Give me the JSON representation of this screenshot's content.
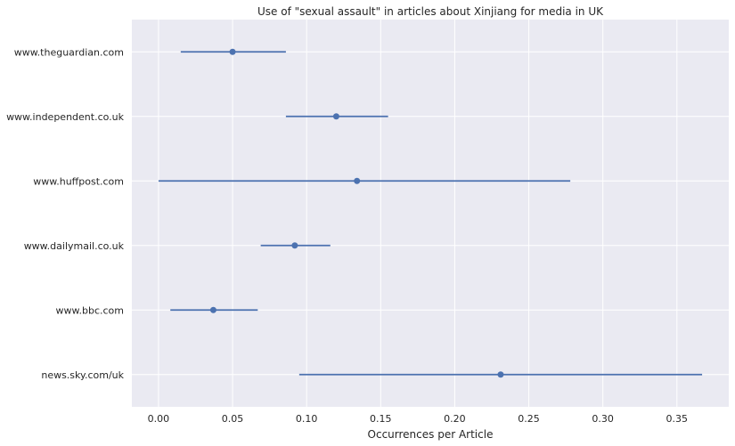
{
  "chart_data": {
    "type": "scatter",
    "title": "Use of \"sexual assault\" in articles about Xinjiang for media in UK",
    "xlabel": "Occurrences per Article",
    "ylabel": "",
    "xlim": [
      -0.018,
      0.385
    ],
    "xticks": [
      0.0,
      0.05,
      0.1,
      0.15,
      0.2,
      0.25,
      0.3,
      0.35
    ],
    "xtick_labels": [
      "0.00",
      "0.05",
      "0.10",
      "0.15",
      "0.20",
      "0.25",
      "0.30",
      "0.35"
    ],
    "grid": true,
    "categories": [
      "www.theguardian.com",
      "www.independent.co.uk",
      "www.huffpost.com",
      "www.dailymail.co.uk",
      "www.bbc.com",
      "news.sky.com/uk"
    ],
    "values": [
      0.05,
      0.12,
      0.134,
      0.092,
      0.037,
      0.231
    ],
    "error_low": [
      0.015,
      0.086,
      0.0,
      0.069,
      0.008,
      0.095
    ],
    "error_high": [
      0.086,
      0.155,
      0.278,
      0.116,
      0.067,
      0.367
    ],
    "colors": {
      "background": "#eaeaf2",
      "grid": "#ffffff",
      "series": "#4c72b0",
      "text": "#262626"
    }
  }
}
